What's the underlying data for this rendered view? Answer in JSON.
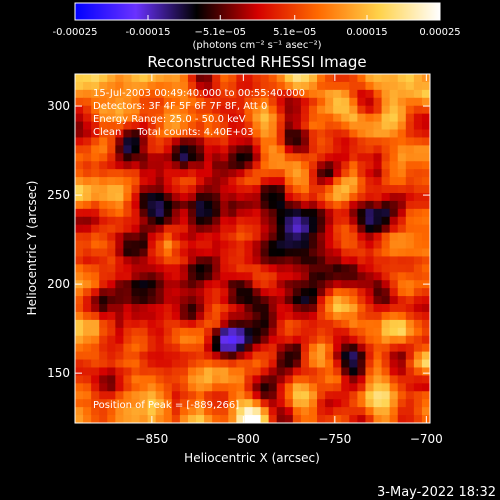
{
  "chart_data": {
    "type": "heatmap",
    "title": "Reconstructed RHESSI Image",
    "xlabel": "Heliocentric X (arcsec)",
    "ylabel": "Heliocentric Y (arcsec)",
    "xlim": [
      -892,
      -698
    ],
    "ylim": [
      122,
      318
    ],
    "x_ticks": [
      -850,
      -800,
      -750,
      -700
    ],
    "x_tick_labels": [
      "−850",
      "−800",
      "−750",
      "−700"
    ],
    "y_ticks": [
      150,
      200,
      250,
      300
    ],
    "y_tick_labels": [
      "150",
      "200",
      "250",
      "300"
    ],
    "colorbar": {
      "range": [
        -0.00025,
        0.00025
      ],
      "ticks": [
        -0.00025,
        -0.00015,
        -5.1e-05,
        5.1e-05,
        0.00015,
        0.00025
      ],
      "tick_labels": [
        "-0.00025",
        "-0.00015",
        "−5.1e−05",
        "5.1e−05",
        "0.00015",
        "0.00025"
      ],
      "unit_label": "(photons cm⁻² s⁻¹ asec⁻²)",
      "colors": [
        "#0000ff",
        "#6a32ff",
        "#000000",
        "#d40000",
        "#ff6a00",
        "#ffd24a",
        "#ffffff"
      ]
    },
    "annotations": [
      "15-Jul-2003 00:49:40.000 to 00:55:40.000",
      "Detectors: 3F 4F 5F 6F 7F 8F, Att 0",
      "Energy Range: 25.0 - 50.0 keV",
      "Clean     Total counts: 4.40E+03",
      "Position of Peak = [-889,266]"
    ],
    "peak": {
      "x": -889,
      "y": 266
    },
    "grid": false,
    "legend": "colorbar-top"
  },
  "footer": {
    "timestamp": "3-May-2022 18:32"
  }
}
